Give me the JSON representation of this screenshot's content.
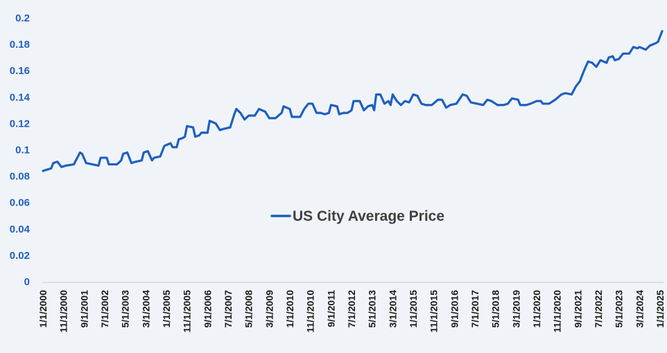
{
  "chart_data": {
    "type": "line",
    "title": "",
    "xlabel": "",
    "ylabel": "",
    "ylim": [
      0,
      0.2
    ],
    "grid": false,
    "legend_position": "center",
    "colors": {
      "line": "#1f5fbf",
      "axis_tick_labels": "#1f5fbf",
      "background": "#f0f4f9"
    },
    "y_ticks": [
      "0",
      "0.02",
      "0.04",
      "0.06",
      "0.08",
      "0.1",
      "0.12",
      "0.14",
      "0.16",
      "0.18",
      "0.2"
    ],
    "x_tick_labels": [
      "1/1/2000",
      "11/1/2000",
      "9/1/2001",
      "7/1/2002",
      "5/1/2003",
      "3/1/2004",
      "1/1/2005",
      "11/1/2005",
      "9/1/2006",
      "7/1/2007",
      "5/1/2008",
      "3/1/2009",
      "1/1/2010",
      "11/1/2010",
      "9/1/2011",
      "7/1/2012",
      "5/1/2013",
      "3/1/2014",
      "1/1/2015",
      "11/1/2015",
      "9/1/2016",
      "7/1/2017",
      "5/1/2018",
      "3/1/2019",
      "1/1/2020",
      "11/1/2020",
      "9/1/2021",
      "7/1/2022",
      "5/1/2023",
      "3/1/2024",
      "1/1/2025"
    ],
    "series": [
      {
        "name": "US City Average Price",
        "x_start": "1/1/2000",
        "frequency": "monthly",
        "keyframes": [
          [
            "1/1/2000",
            0.084
          ],
          [
            "3/1/2000",
            0.085
          ],
          [
            "5/1/2000",
            0.086
          ],
          [
            "6/1/2000",
            0.09
          ],
          [
            "8/1/2000",
            0.091
          ],
          [
            "10/1/2000",
            0.087
          ],
          [
            "12/1/2000",
            0.088
          ],
          [
            "4/1/2001",
            0.089
          ],
          [
            "7/1/2001",
            0.098
          ],
          [
            "8/1/2001",
            0.097
          ],
          [
            "10/1/2001",
            0.09
          ],
          [
            "1/1/2002",
            0.089
          ],
          [
            "4/1/2002",
            0.088
          ],
          [
            "5/1/2002",
            0.094
          ],
          [
            "8/1/2002",
            0.094
          ],
          [
            "9/1/2002",
            0.089
          ],
          [
            "1/1/2003",
            0.089
          ],
          [
            "3/1/2003",
            0.092
          ],
          [
            "4/1/2003",
            0.097
          ],
          [
            "6/1/2003",
            0.098
          ],
          [
            "8/1/2003",
            0.09
          ],
          [
            "10/1/2003",
            0.091
          ],
          [
            "1/1/2004",
            0.092
          ],
          [
            "2/1/2004",
            0.098
          ],
          [
            "4/1/2004",
            0.099
          ],
          [
            "6/1/2004",
            0.092
          ],
          [
            "7/1/2004",
            0.094
          ],
          [
            "10/1/2004",
            0.095
          ],
          [
            "12/1/2004",
            0.103
          ],
          [
            "3/1/2005",
            0.105
          ],
          [
            "4/1/2005",
            0.102
          ],
          [
            "6/1/2005",
            0.102
          ],
          [
            "7/1/2005",
            0.108
          ],
          [
            "9/1/2005",
            0.109
          ],
          [
            "10/1/2005",
            0.11
          ],
          [
            "11/1/2005",
            0.118
          ],
          [
            "2/1/2006",
            0.117
          ],
          [
            "3/1/2006",
            0.11
          ],
          [
            "5/1/2006",
            0.111
          ],
          [
            "6/1/2006",
            0.113
          ],
          [
            "9/1/2006",
            0.113
          ],
          [
            "10/1/2006",
            0.122
          ],
          [
            "1/1/2007",
            0.12
          ],
          [
            "3/1/2007",
            0.115
          ],
          [
            "5/1/2007",
            0.116
          ],
          [
            "8/1/2007",
            0.117
          ],
          [
            "10/1/2007",
            0.127
          ],
          [
            "11/1/2007",
            0.131
          ],
          [
            "1/1/2008",
            0.128
          ],
          [
            "3/1/2008",
            0.123
          ],
          [
            "5/1/2008",
            0.126
          ],
          [
            "8/1/2008",
            0.126
          ],
          [
            "10/1/2008",
            0.131
          ],
          [
            "1/1/2009",
            0.129
          ],
          [
            "3/1/2009",
            0.124
          ],
          [
            "6/1/2009",
            0.124
          ],
          [
            "9/1/2009",
            0.128
          ],
          [
            "10/1/2009",
            0.133
          ],
          [
            "1/1/2010",
            0.131
          ],
          [
            "2/1/2010",
            0.125
          ],
          [
            "6/1/2010",
            0.125
          ],
          [
            "8/1/2010",
            0.131
          ],
          [
            "10/1/2010",
            0.135
          ],
          [
            "12/1/2010",
            0.135
          ],
          [
            "2/1/2011",
            0.128
          ],
          [
            "4/1/2011",
            0.128
          ],
          [
            "6/1/2011",
            0.127
          ],
          [
            "8/1/2011",
            0.128
          ],
          [
            "9/1/2011",
            0.134
          ],
          [
            "12/1/2011",
            0.133
          ],
          [
            "1/1/2012",
            0.127
          ],
          [
            "3/1/2012",
            0.128
          ],
          [
            "5/1/2012",
            0.128
          ],
          [
            "7/1/2012",
            0.13
          ],
          [
            "8/1/2012",
            0.137
          ],
          [
            "11/1/2012",
            0.137
          ],
          [
            "1/1/2013",
            0.13
          ],
          [
            "3/1/2013",
            0.133
          ],
          [
            "5/1/2013",
            0.134
          ],
          [
            "6/1/2013",
            0.13
          ],
          [
            "7/1/2013",
            0.142
          ],
          [
            "9/1/2013",
            0.142
          ],
          [
            "11/1/2013",
            0.135
          ],
          [
            "1/1/2014",
            0.137
          ],
          [
            "2/1/2014",
            0.134
          ],
          [
            "3/1/2014",
            0.142
          ],
          [
            "5/1/2014",
            0.137
          ],
          [
            "7/1/2014",
            0.134
          ],
          [
            "9/1/2014",
            0.137
          ],
          [
            "11/1/2014",
            0.136
          ],
          [
            "1/1/2015",
            0.142
          ],
          [
            "3/1/2015",
            0.141
          ],
          [
            "5/1/2015",
            0.135
          ],
          [
            "7/1/2015",
            0.134
          ],
          [
            "10/1/2015",
            0.134
          ],
          [
            "1/1/2016",
            0.138
          ],
          [
            "3/1/2016",
            0.138
          ],
          [
            "5/1/2016",
            0.132
          ],
          [
            "7/1/2016",
            0.134
          ],
          [
            "10/1/2016",
            0.135
          ],
          [
            "1/1/2017",
            0.142
          ],
          [
            "3/1/2017",
            0.141
          ],
          [
            "5/1/2017",
            0.136
          ],
          [
            "8/1/2017",
            0.135
          ],
          [
            "11/1/2017",
            0.134
          ],
          [
            "1/1/2018",
            0.138
          ],
          [
            "3/1/2018",
            0.137
          ],
          [
            "6/1/2018",
            0.134
          ],
          [
            "9/1/2018",
            0.134
          ],
          [
            "11/1/2018",
            0.135
          ],
          [
            "1/1/2019",
            0.139
          ],
          [
            "4/1/2019",
            0.138
          ],
          [
            "5/1/2019",
            0.134
          ],
          [
            "8/1/2019",
            0.134
          ],
          [
            "10/1/2019",
            0.135
          ],
          [
            "1/1/2020",
            0.137
          ],
          [
            "3/1/2020",
            0.137
          ],
          [
            "4/1/2020",
            0.135
          ],
          [
            "7/1/2020",
            0.135
          ],
          [
            "10/1/2020",
            0.138
          ],
          [
            "1/1/2021",
            0.142
          ],
          [
            "3/1/2021",
            0.143
          ],
          [
            "6/1/2021",
            0.142
          ],
          [
            "8/1/2021",
            0.148
          ],
          [
            "10/1/2021",
            0.152
          ],
          [
            "12/1/2021",
            0.16
          ],
          [
            "2/1/2022",
            0.167
          ],
          [
            "4/1/2022",
            0.166
          ],
          [
            "6/1/2022",
            0.163
          ],
          [
            "8/1/2022",
            0.168
          ],
          [
            "11/1/2022",
            0.166
          ],
          [
            "12/1/2022",
            0.17
          ],
          [
            "2/1/2023",
            0.171
          ],
          [
            "3/1/2023",
            0.168
          ],
          [
            "5/1/2023",
            0.169
          ],
          [
            "7/1/2023",
            0.173
          ],
          [
            "10/1/2023",
            0.173
          ],
          [
            "12/1/2023",
            0.178
          ],
          [
            "2/1/2024",
            0.177
          ],
          [
            "3/1/2024",
            0.178
          ],
          [
            "6/1/2024",
            0.176
          ],
          [
            "8/1/2024",
            0.179
          ],
          [
            "11/1/2024",
            0.181
          ],
          [
            "12/1/2024",
            0.182
          ],
          [
            "2/1/2025",
            0.19
          ]
        ]
      }
    ]
  }
}
